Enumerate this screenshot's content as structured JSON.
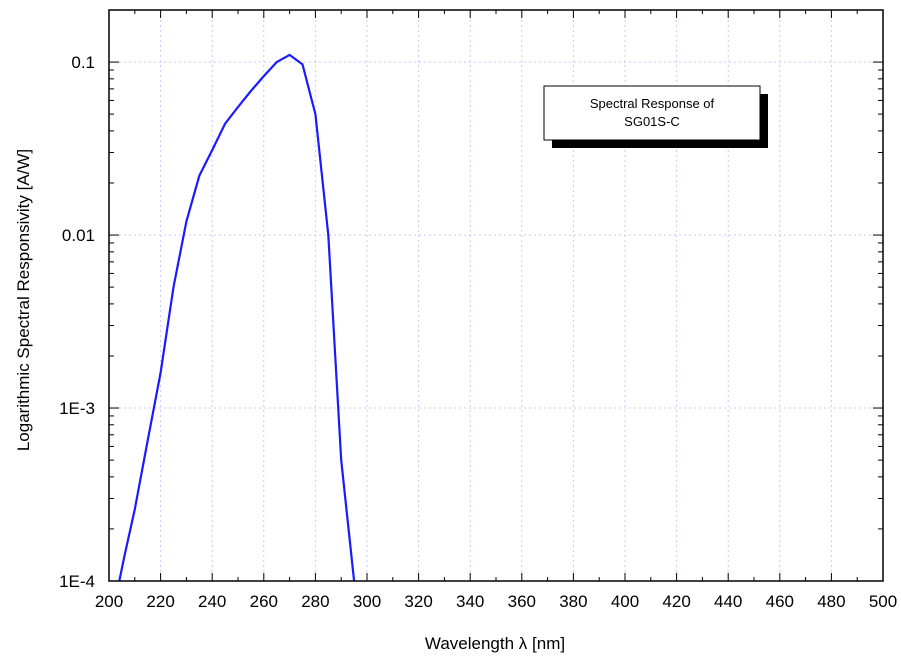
{
  "chart_data": {
    "type": "line",
    "title": "",
    "xlabel": "Wavelength λ [nm]",
    "ylabel": "Logarithmic Spectral Responsivity [A/W]",
    "xlim": [
      200,
      500
    ],
    "ylim": [
      0.0001,
      0.2
    ],
    "y_scale": "log",
    "grid": true,
    "x_ticks": [
      200,
      220,
      240,
      260,
      280,
      300,
      320,
      340,
      360,
      380,
      400,
      420,
      440,
      460,
      480,
      500
    ],
    "x_tick_labels": [
      "200",
      "220",
      "240",
      "260",
      "280",
      "300",
      "320",
      "340",
      "360",
      "380",
      "400",
      "420",
      "440",
      "460",
      "480",
      "500"
    ],
    "y_ticks": [
      0.0001,
      0.001,
      0.01,
      0.1
    ],
    "y_tick_labels": [
      "1E-4",
      "1E-3",
      "0.01",
      "0.1"
    ],
    "series": [
      {
        "x": [
          204,
          206,
          210,
          215,
          220,
          225,
          230,
          235,
          240,
          245,
          250,
          255,
          260,
          265,
          270,
          275,
          280,
          285,
          290,
          295
        ],
        "y": [
          0.0001,
          0.00014,
          0.00026,
          0.00065,
          0.0016,
          0.005,
          0.012,
          0.022,
          0.031,
          0.044,
          0.055,
          0.068,
          0.083,
          0.1,
          0.11,
          0.097,
          0.05,
          0.01,
          0.0005,
          0.0001
        ]
      }
    ],
    "legend": {
      "lines": [
        "Spectral Response of",
        "SG01S-C"
      ],
      "placement": "top-right"
    },
    "colors": {
      "line": "#1a1aff",
      "grid": "#c8c8ff",
      "axis": "#000000",
      "legend_shadow": "#000000"
    }
  }
}
